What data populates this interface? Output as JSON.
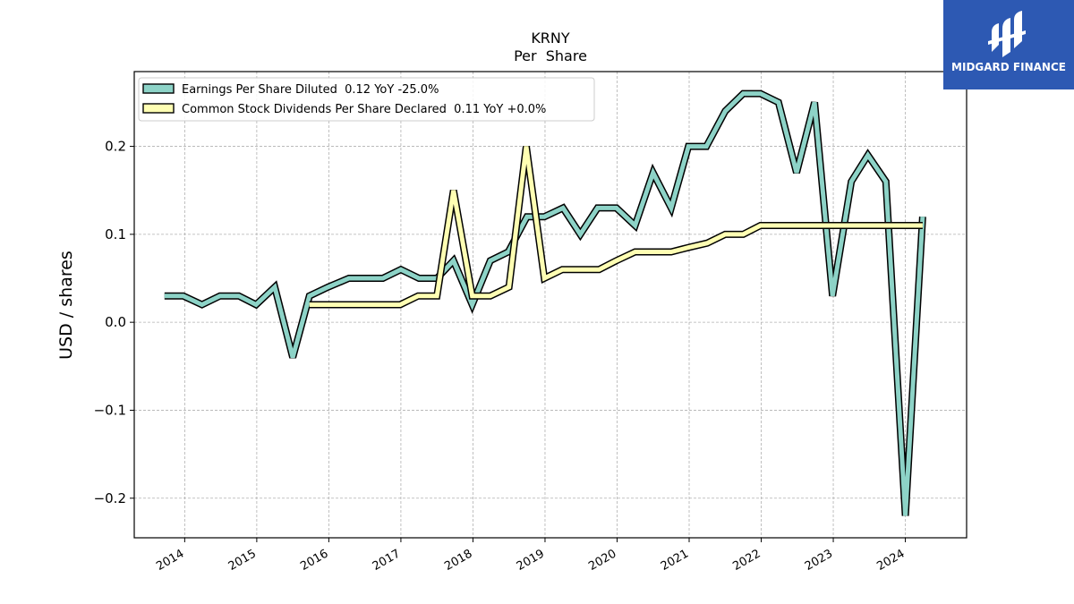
{
  "chart_data": {
    "type": "line",
    "title": "KRNY",
    "subtitle": "Per  Share",
    "ylabel": "USD / shares",
    "xlabel": "",
    "xlim": [
      2013.3,
      2024.85
    ],
    "ylim": [
      -0.245,
      0.285
    ],
    "y_ticks": [
      -0.2,
      -0.1,
      0.0,
      0.1,
      0.2
    ],
    "y_tick_labels": [
      "−0.2",
      "−0.1",
      "0.0",
      "0.1",
      "0.2"
    ],
    "x_ticks": [
      2014,
      2015,
      2016,
      2017,
      2018,
      2019,
      2020,
      2021,
      2022,
      2023,
      2024
    ],
    "x_tick_labels": [
      "2014",
      "2015",
      "2016",
      "2017",
      "2018",
      "2019",
      "2020",
      "2021",
      "2022",
      "2023",
      "2024"
    ],
    "grid": true,
    "legend_position": "top-left",
    "series": [
      {
        "name": "Earnings Per Share Diluted",
        "legend_label": "Earnings Per Share Diluted  0.12 YoY -25.0%",
        "color": "#8dd3c7",
        "x": [
          2013.72,
          2013.98,
          2014.24,
          2014.49,
          2014.75,
          2014.99,
          2015.25,
          2015.5,
          2015.73,
          2015.99,
          2016.28,
          2016.5,
          2016.75,
          2017.0,
          2017.25,
          2017.5,
          2017.73,
          2017.99,
          2018.24,
          2018.49,
          2018.75,
          2018.99,
          2019.25,
          2019.49,
          2019.73,
          2019.99,
          2020.25,
          2020.5,
          2020.75,
          2020.99,
          2021.24,
          2021.5,
          2021.75,
          2021.99,
          2022.24,
          2022.49,
          2022.74,
          2022.99,
          2023.25,
          2023.48,
          2023.73,
          2024.0,
          2024.24
        ],
        "values": [
          0.03,
          0.03,
          0.02,
          0.03,
          0.03,
          0.02,
          0.04,
          -0.04,
          0.03,
          0.04,
          0.05,
          0.05,
          0.05,
          0.06,
          0.05,
          0.05,
          0.07,
          0.02,
          0.07,
          0.08,
          0.12,
          0.12,
          0.13,
          0.1,
          0.13,
          0.13,
          0.11,
          0.17,
          0.13,
          0.2,
          0.2,
          0.24,
          0.26,
          0.26,
          0.25,
          0.17,
          0.25,
          0.03,
          0.16,
          0.19,
          0.16,
          -0.22,
          0.12
        ]
      },
      {
        "name": "Common Stock Dividends Per Share Declared",
        "legend_label": "Common Stock Dividends Per Share Declared  0.11 YoY +0.0%",
        "color": "#ffffb3",
        "x": [
          2015.73,
          2015.99,
          2016.24,
          2016.49,
          2016.75,
          2016.99,
          2017.24,
          2017.5,
          2017.73,
          2017.99,
          2018.24,
          2018.5,
          2018.74,
          2018.99,
          2019.24,
          2019.49,
          2019.75,
          2019.99,
          2020.25,
          2020.5,
          2020.75,
          2020.99,
          2021.25,
          2021.5,
          2021.75,
          2021.99,
          2022.24,
          2022.5,
          2022.75,
          2022.99,
          2023.24,
          2023.5,
          2023.75,
          2023.99,
          2024.24
        ],
        "values": [
          0.02,
          0.02,
          0.02,
          0.02,
          0.02,
          0.02,
          0.03,
          0.03,
          0.15,
          0.03,
          0.03,
          0.04,
          0.2,
          0.05,
          0.06,
          0.06,
          0.06,
          0.07,
          0.08,
          0.08,
          0.08,
          0.085,
          0.09,
          0.1,
          0.1,
          0.11,
          0.11,
          0.11,
          0.11,
          0.11,
          0.11,
          0.11,
          0.11,
          0.11,
          0.11
        ]
      }
    ]
  },
  "logo": {
    "text": "MIDGARD FINANCE",
    "icon": "midgard-logo-icon",
    "color": "#2d59b3"
  }
}
